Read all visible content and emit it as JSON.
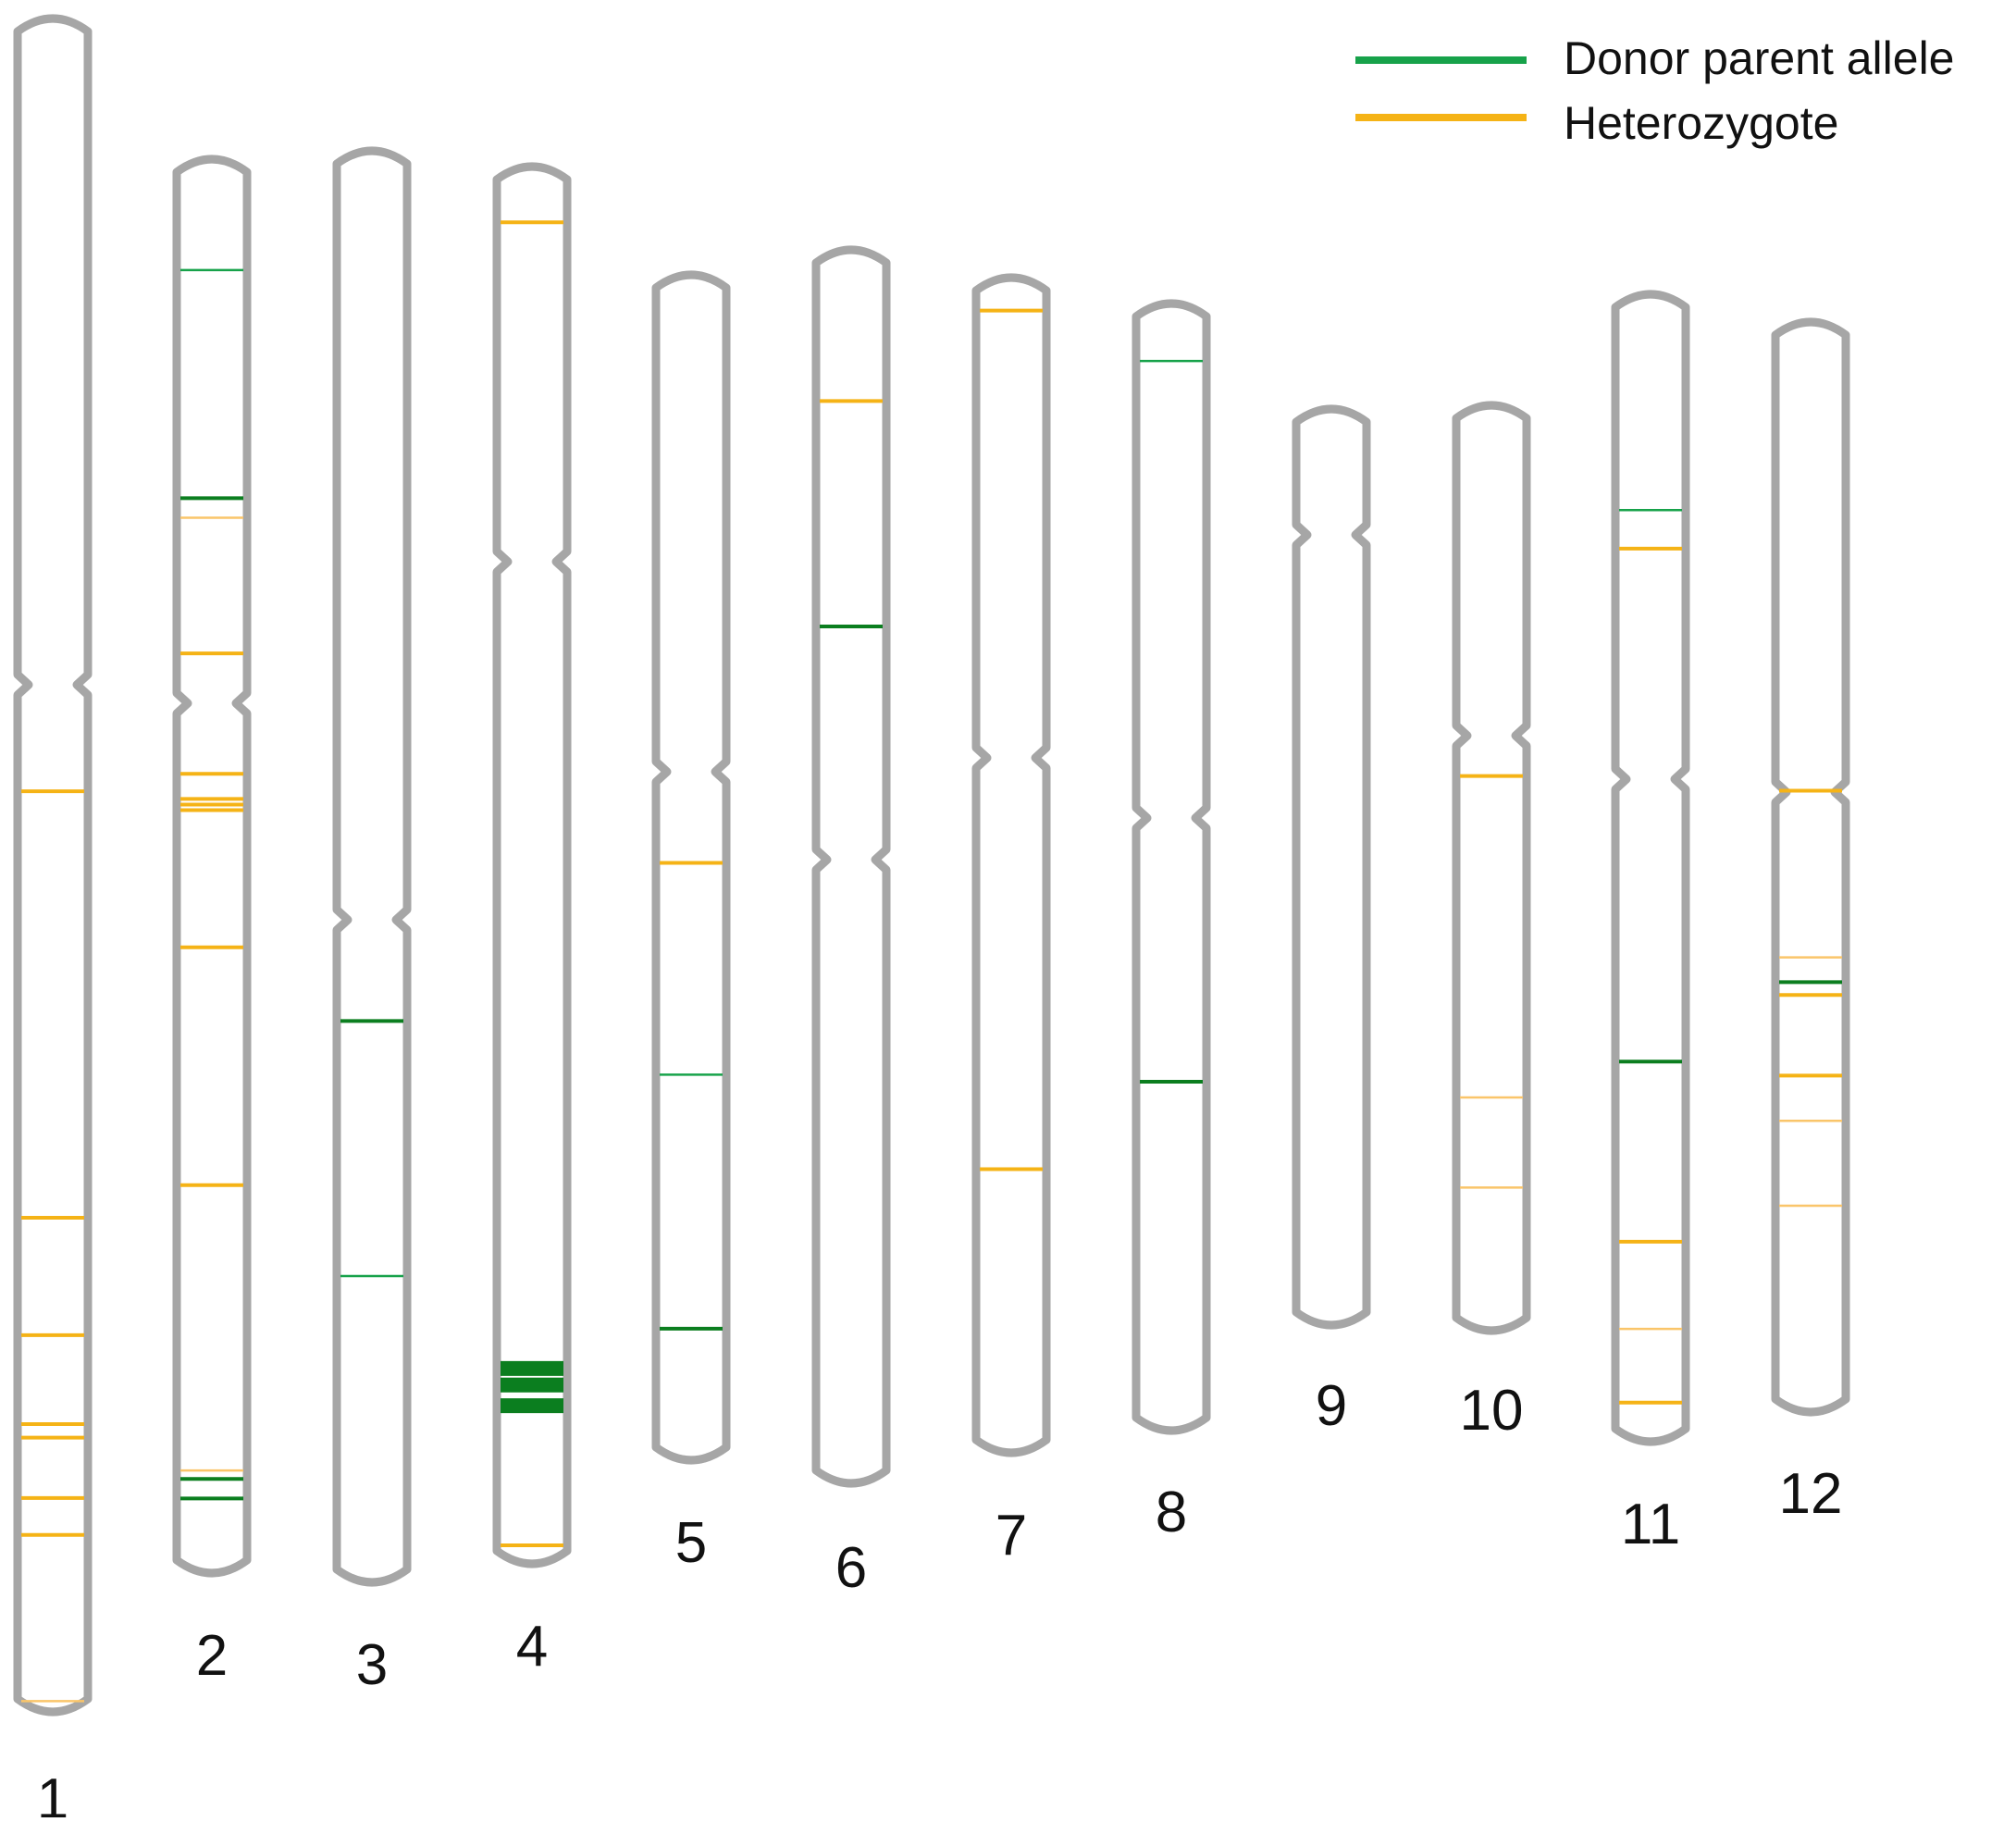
{
  "colors": {
    "donor": "#17a24a",
    "donor_dark": "#0b7e1f",
    "heterozygote": "#f5b316",
    "heterozygote_light": "#fac56a",
    "outline": "#a6a6a6"
  },
  "legend": {
    "items": [
      {
        "key": "donor",
        "label": "Donor parent allele"
      },
      {
        "key": "heterozygote",
        "label": "Heterozygote"
      }
    ]
  },
  "chromosomes": [
    {
      "label": "1",
      "markers": [
        {
          "type": "heterozygote",
          "position": 0.456
        },
        {
          "type": "heterozygote",
          "position": 0.71
        },
        {
          "type": "heterozygote",
          "position": 0.78
        },
        {
          "type": "heterozygote",
          "position": 0.833
        },
        {
          "type": "heterozygote",
          "position": 0.841
        },
        {
          "type": "heterozygote",
          "position": 0.877
        },
        {
          "type": "heterozygote",
          "position": 0.899
        },
        {
          "type": "heterozygote",
          "position": 0.998,
          "light": true
        }
      ]
    },
    {
      "label": "2",
      "markers": [
        {
          "type": "donor",
          "position": 0.074,
          "light": true
        },
        {
          "type": "donor",
          "position": 0.237
        },
        {
          "type": "heterozygote",
          "position": 0.251,
          "light": true
        },
        {
          "type": "heterozygote",
          "position": 0.348
        },
        {
          "type": "heterozygote",
          "position": 0.434
        },
        {
          "type": "heterozygote",
          "position": 0.452
        },
        {
          "type": "heterozygote",
          "position": 0.456
        },
        {
          "type": "heterozygote",
          "position": 0.46
        },
        {
          "type": "heterozygote",
          "position": 0.558
        },
        {
          "type": "heterozygote",
          "position": 0.728
        },
        {
          "type": "heterozygote",
          "position": 0.932,
          "light": true
        },
        {
          "type": "donor",
          "position": 0.938
        },
        {
          "type": "donor",
          "position": 0.952
        }
      ]
    },
    {
      "label": "3",
      "markers": [
        {
          "type": "donor",
          "position": 0.609
        },
        {
          "type": "donor",
          "position": 0.789,
          "light": true
        }
      ]
    },
    {
      "label": "4",
      "markers": [
        {
          "type": "heterozygote",
          "position": 0.035
        },
        {
          "type": "donor",
          "position": 0.864,
          "thick": true
        },
        {
          "type": "donor",
          "position": 0.876,
          "thick": true
        },
        {
          "type": "donor",
          "position": 0.891,
          "thick": true
        },
        {
          "type": "heterozygote",
          "position": 0.992
        }
      ]
    },
    {
      "label": "5",
      "markers": [
        {
          "type": "heterozygote",
          "position": 0.496
        },
        {
          "type": "donor",
          "position": 0.677,
          "light": true
        },
        {
          "type": "donor",
          "position": 0.894
        }
      ]
    },
    {
      "label": "6",
      "markers": [
        {
          "type": "heterozygote",
          "position": 0.118
        },
        {
          "type": "donor",
          "position": 0.303
        }
      ]
    },
    {
      "label": "7",
      "markers": [
        {
          "type": "heterozygote",
          "position": 0.022
        },
        {
          "type": "heterozygote",
          "position": 0.762
        }
      ]
    },
    {
      "label": "8",
      "markers": [
        {
          "type": "donor",
          "position": 0.045,
          "light": true
        },
        {
          "type": "donor",
          "position": 0.693
        }
      ]
    },
    {
      "label": "9",
      "markers": []
    },
    {
      "label": "10",
      "markers": [
        {
          "type": "heterozygote",
          "position": 0.399
        },
        {
          "type": "heterozygote",
          "position": 0.752,
          "light": true
        },
        {
          "type": "heterozygote",
          "position": 0.851,
          "light": true
        }
      ]
    },
    {
      "label": "11",
      "markers": [
        {
          "type": "donor",
          "position": 0.184,
          "light": true
        },
        {
          "type": "heterozygote",
          "position": 0.218
        },
        {
          "type": "donor",
          "position": 0.671
        },
        {
          "type": "heterozygote",
          "position": 0.83
        },
        {
          "type": "heterozygote",
          "position": 0.907,
          "light": true
        },
        {
          "type": "heterozygote",
          "position": 0.972
        }
      ]
    },
    {
      "label": "12",
      "markers": [
        {
          "type": "heterozygote",
          "position": 0.429
        },
        {
          "type": "heterozygote",
          "position": 0.584,
          "light": true
        },
        {
          "type": "donor",
          "position": 0.607
        },
        {
          "type": "heterozygote",
          "position": 0.619
        },
        {
          "type": "heterozygote",
          "position": 0.694
        },
        {
          "type": "heterozygote",
          "position": 0.736,
          "light": true
        },
        {
          "type": "heterozygote",
          "position": 0.815,
          "light": true
        }
      ]
    }
  ]
}
